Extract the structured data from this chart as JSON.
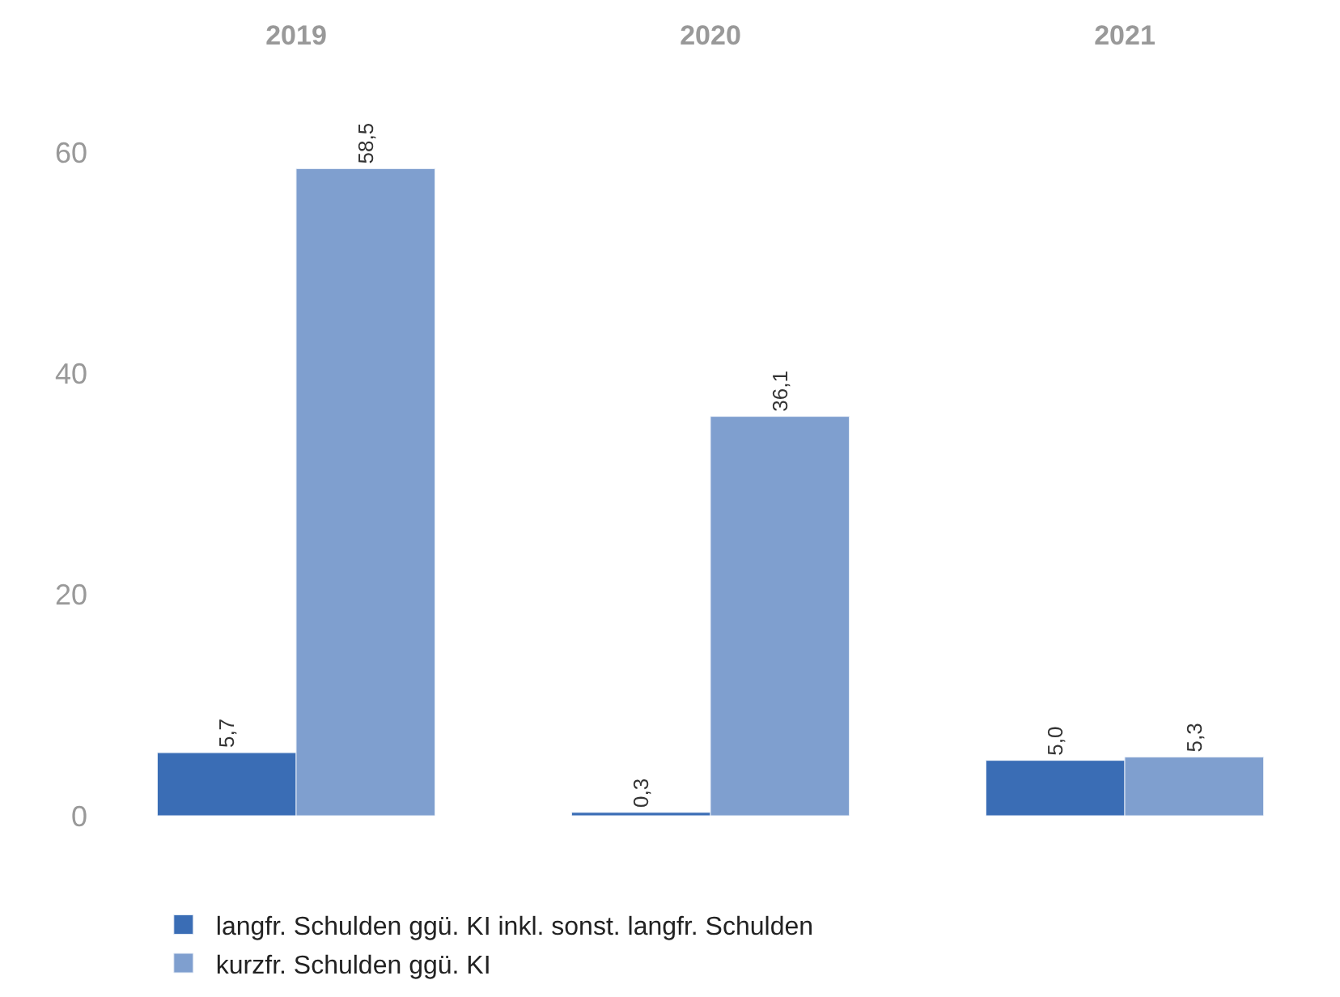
{
  "chart_data": {
    "type": "bar",
    "categories": [
      "2019",
      "2020",
      "2021"
    ],
    "series": [
      {
        "name": "langfr. Schulden ggü. KI inkl. sonst. langfr. Schulden",
        "color": "#3a6db5",
        "values": [
          5.7,
          0.3,
          5.0
        ],
        "value_labels": [
          "5,7",
          "0,3",
          "5,0"
        ]
      },
      {
        "name": "kurzfr. Schulden ggü. KI",
        "color": "#7f9fcf",
        "values": [
          58.5,
          36.1,
          5.3
        ],
        "value_labels": [
          "58,5",
          "36,1",
          "5,3"
        ]
      }
    ],
    "ylim": [
      0,
      60
    ],
    "yticks": [
      0,
      20,
      40,
      60
    ],
    "legend": "bottom left"
  }
}
